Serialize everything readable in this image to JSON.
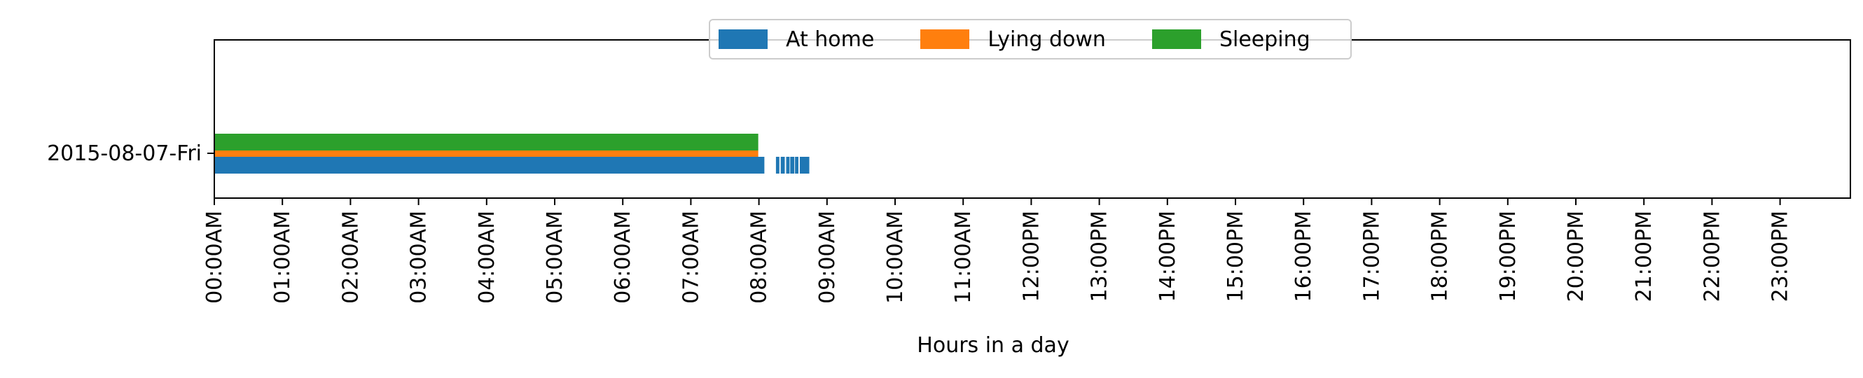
{
  "chart_data": {
    "type": "bar",
    "orientation": "horizontal",
    "title": "",
    "xlabel": "Hours in a day",
    "ylabel": "",
    "xlim_hours": [
      0,
      24
    ],
    "x_tick_labels": [
      "00:00AM",
      "01:00AM",
      "02:00AM",
      "03:00AM",
      "04:00AM",
      "05:00AM",
      "06:00AM",
      "07:00AM",
      "08:00AM",
      "09:00AM",
      "10:00AM",
      "11:00AM",
      "12:00PM",
      "13:00PM",
      "14:00PM",
      "15:00PM",
      "16:00PM",
      "17:00PM",
      "18:00PM",
      "19:00PM",
      "20:00PM",
      "21:00PM",
      "22:00PM",
      "23:00PM"
    ],
    "categories": [
      "2015-08-07-Fri"
    ],
    "grid": false,
    "legend_position": "top-center",
    "series": [
      {
        "name": "At home",
        "color": "#1f77b4",
        "intervals": [
          [
            0.0,
            8.08
          ],
          [
            8.25,
            8.3
          ],
          [
            8.32,
            8.38
          ],
          [
            8.4,
            8.45
          ],
          [
            8.46,
            8.52
          ],
          [
            8.53,
            8.58
          ],
          [
            8.6,
            8.74
          ]
        ]
      },
      {
        "name": "Lying down",
        "color": "#ff7f0e",
        "intervals": [
          [
            0.0,
            7.99
          ]
        ]
      },
      {
        "name": "Sleeping",
        "color": "#2ca02c",
        "intervals": [
          [
            0.0,
            7.99
          ]
        ]
      }
    ]
  }
}
